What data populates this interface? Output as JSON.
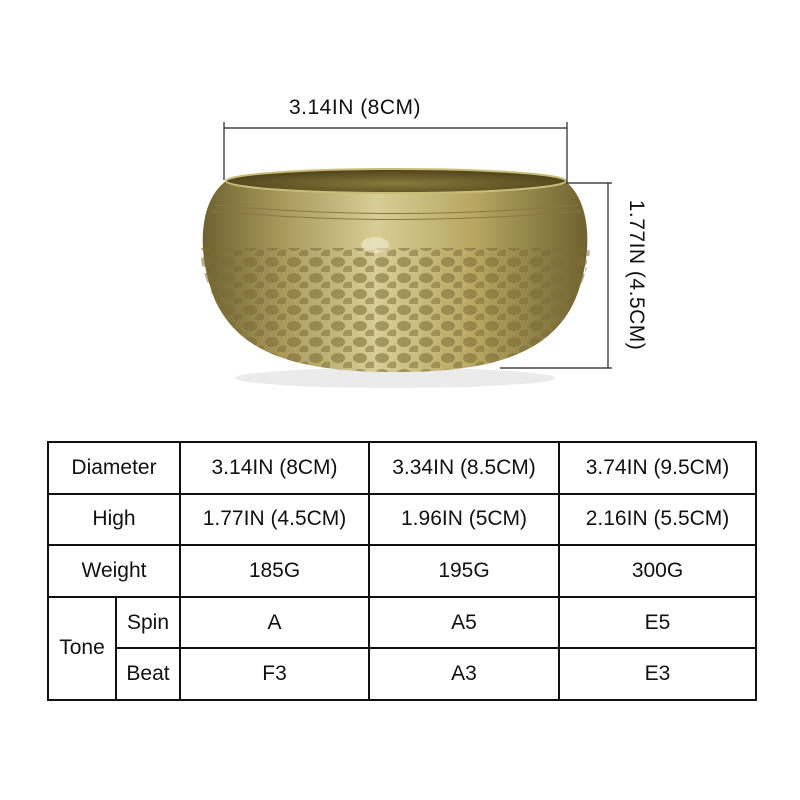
{
  "dimensions": {
    "width_label": "3.14IN (8CM)",
    "height_label": "1.77IN (4.5CM)"
  },
  "colors": {
    "bowl_brass": "#b9a85c",
    "bowl_dark": "#6f6230",
    "border": "#111111"
  },
  "table": {
    "rows": [
      {
        "label": "Diameter",
        "values": [
          "3.14IN (8CM)",
          "3.34IN (8.5CM)",
          "3.74IN (9.5CM)"
        ]
      },
      {
        "label": "High",
        "values": [
          "1.77IN (4.5CM)",
          "1.96IN (5CM)",
          "2.16IN (5.5CM)"
        ]
      },
      {
        "label": "Weight",
        "values": [
          "185G",
          "195G",
          "300G"
        ]
      }
    ],
    "tone": {
      "label": "Tone",
      "rows": [
        {
          "label": "Spin",
          "values": [
            "A",
            "A5",
            "E5"
          ]
        },
        {
          "label": "Beat",
          "values": [
            "F3",
            "A3",
            "E3"
          ]
        }
      ]
    }
  }
}
